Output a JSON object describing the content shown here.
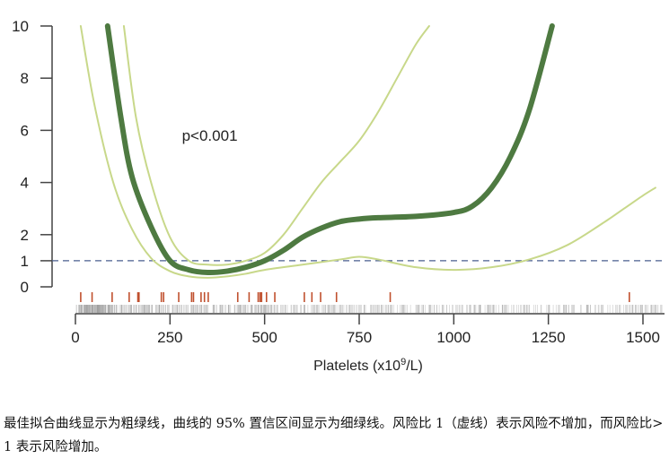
{
  "chart_data": {
    "type": "line",
    "title": "",
    "xlabel": "Platelets (x10⁹/L)",
    "xlabel_parts": {
      "pre": "Platelets (x10",
      "sup": "9",
      "post": "/L)"
    },
    "ylabel": "",
    "xlim": [
      0,
      1550
    ],
    "ylim": [
      0,
      10
    ],
    "x_ticks": [
      0,
      250,
      500,
      750,
      1000,
      1250,
      1500
    ],
    "y_ticks": [
      0,
      1,
      2,
      4,
      6,
      8,
      10
    ],
    "grid": false,
    "annotation": {
      "text": "p<0.001",
      "x": 355,
      "y": 5.8
    },
    "reference_line": {
      "y": 1,
      "style": "dashed",
      "color": "#4a5f8f"
    },
    "series": [
      {
        "role": "best-fit",
        "color": "#4e7a41",
        "points": [
          [
            85,
            10
          ],
          [
            120,
            6.5
          ],
          [
            150,
            4.2
          ],
          [
            200,
            2.3
          ],
          [
            250,
            1.0
          ],
          [
            300,
            0.65
          ],
          [
            350,
            0.55
          ],
          [
            400,
            0.6
          ],
          [
            450,
            0.75
          ],
          [
            500,
            1.0
          ],
          [
            550,
            1.4
          ],
          [
            600,
            1.9
          ],
          [
            650,
            2.25
          ],
          [
            700,
            2.5
          ],
          [
            750,
            2.6
          ],
          [
            800,
            2.65
          ],
          [
            900,
            2.7
          ],
          [
            1000,
            2.85
          ],
          [
            1050,
            3.1
          ],
          [
            1100,
            3.8
          ],
          [
            1150,
            5.0
          ],
          [
            1200,
            6.8
          ],
          [
            1260,
            10
          ]
        ]
      },
      {
        "role": "ci-upper",
        "color": "#c8d88a",
        "points": [
          [
            128,
            10
          ],
          [
            160,
            6.5
          ],
          [
            200,
            4.0
          ],
          [
            250,
            1.9
          ],
          [
            300,
            1.0
          ],
          [
            350,
            0.85
          ],
          [
            400,
            0.85
          ],
          [
            450,
            1.0
          ],
          [
            500,
            1.3
          ],
          [
            550,
            2.0
          ],
          [
            600,
            3.0
          ],
          [
            650,
            4.0
          ],
          [
            700,
            4.8
          ],
          [
            750,
            5.6
          ],
          [
            800,
            6.7
          ],
          [
            850,
            8.0
          ],
          [
            900,
            9.3
          ],
          [
            935,
            10
          ]
        ]
      },
      {
        "role": "ci-lower",
        "color": "#c8d88a",
        "points": [
          [
            14,
            10
          ],
          [
            50,
            7
          ],
          [
            100,
            4
          ],
          [
            150,
            2.2
          ],
          [
            200,
            1.1
          ],
          [
            250,
            0.6
          ],
          [
            300,
            0.4
          ],
          [
            350,
            0.35
          ],
          [
            400,
            0.4
          ],
          [
            450,
            0.5
          ],
          [
            500,
            0.65
          ],
          [
            600,
            0.85
          ],
          [
            700,
            1.05
          ],
          [
            750,
            1.15
          ],
          [
            800,
            1.05
          ],
          [
            900,
            0.75
          ],
          [
            1000,
            0.65
          ],
          [
            1100,
            0.75
          ],
          [
            1200,
            1.05
          ],
          [
            1300,
            1.6
          ],
          [
            1400,
            2.5
          ],
          [
            1450,
            3.0
          ],
          [
            1500,
            3.5
          ],
          [
            1533,
            3.8
          ]
        ]
      }
    ],
    "event_rug": {
      "color": "#c0502e",
      "x": [
        14,
        44,
        97,
        142,
        165,
        168,
        227,
        233,
        273,
        307,
        312,
        332,
        341,
        351,
        429,
        459,
        483,
        488,
        492,
        505,
        527,
        605,
        625,
        648,
        690,
        832,
        1464
      ]
    },
    "population_rug": {
      "color": "#999999",
      "range": [
        0,
        1550
      ]
    }
  },
  "caption": "最佳拟合曲线显示为粗绿线，曲线的 95% 置信区间显示为细绿线。风险比 1（虚线）表示风险不增加，而风险比> 1 表示风险增加。"
}
